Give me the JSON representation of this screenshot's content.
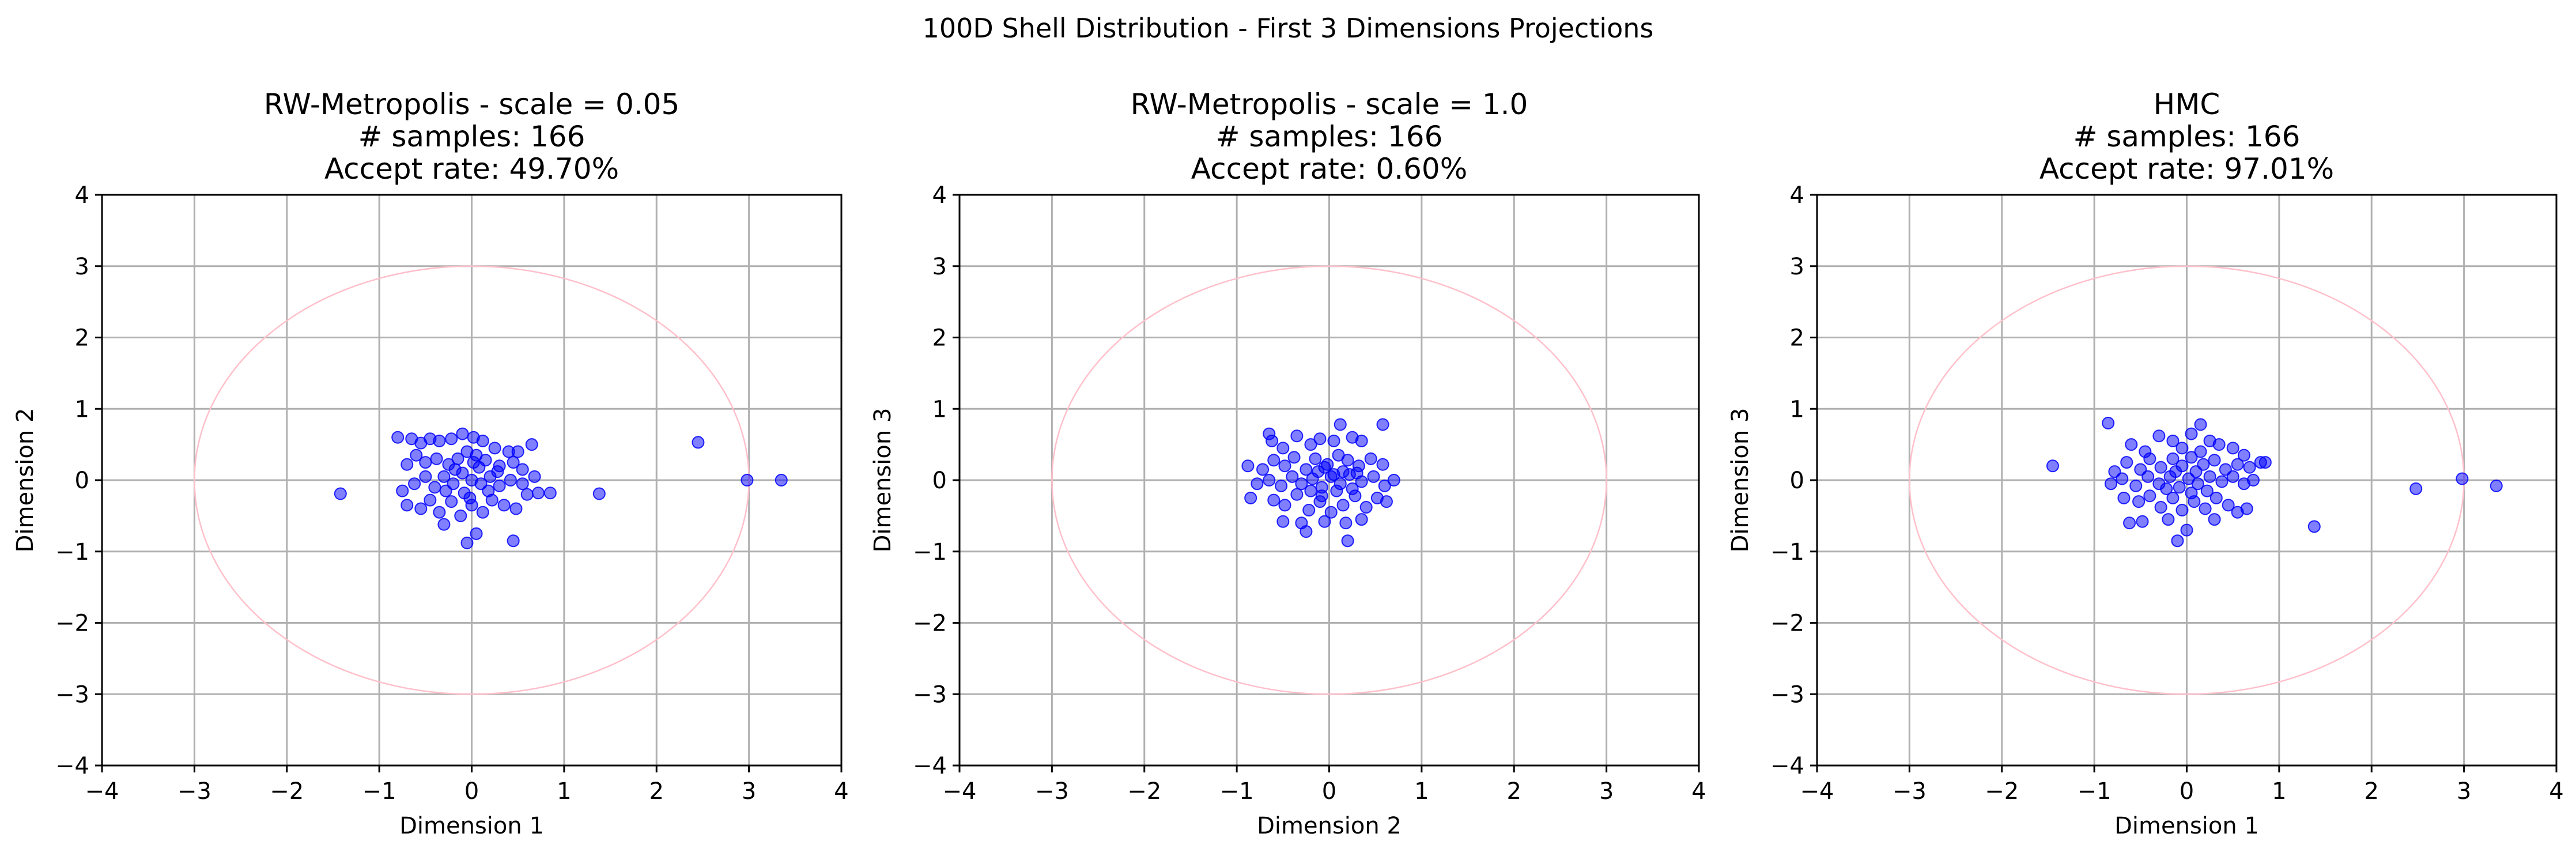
{
  "figure": {
    "suptitle": "100D Shell Distribution - First 3 Dimensions Projections"
  },
  "style": {
    "point_color": "#0000ff",
    "circle_color": "#ffc0cb",
    "grid_color": "#b0b0b0"
  },
  "chart_data": [
    {
      "type": "scatter",
      "title_lines": [
        "RW-Metropolis - scale = 0.05",
        "# samples: 166",
        "Accept rate: 49.70%"
      ],
      "xlabel": "Dimension 1",
      "ylabel": "Dimension 2",
      "xlim": [
        -4,
        4
      ],
      "ylim": [
        -4,
        4
      ],
      "xticks": [
        -4,
        -3,
        -2,
        -1,
        0,
        1,
        2,
        3,
        4
      ],
      "yticks": [
        -4,
        -3,
        -2,
        -1,
        0,
        1,
        2,
        3,
        4
      ],
      "grid": true,
      "reference_circle_radius": 3,
      "points": [
        [
          -1.42,
          -0.19
        ],
        [
          -0.8,
          0.6
        ],
        [
          -0.65,
          0.58
        ],
        [
          -0.55,
          0.52
        ],
        [
          -0.45,
          0.58
        ],
        [
          -0.35,
          0.55
        ],
        [
          -0.22,
          0.58
        ],
        [
          -0.1,
          0.65
        ],
        [
          0.02,
          0.6
        ],
        [
          0.12,
          0.55
        ],
        [
          0.25,
          0.45
        ],
        [
          0.4,
          0.4
        ],
        [
          0.5,
          0.4
        ],
        [
          0.65,
          0.5
        ],
        [
          -0.7,
          0.22
        ],
        [
          -0.6,
          0.35
        ],
        [
          -0.5,
          0.25
        ],
        [
          -0.38,
          0.3
        ],
        [
          -0.25,
          0.22
        ],
        [
          -0.15,
          0.3
        ],
        [
          -0.05,
          0.4
        ],
        [
          0.05,
          0.35
        ],
        [
          0.15,
          0.28
        ],
        [
          0.3,
          0.2
        ],
        [
          0.45,
          0.25
        ],
        [
          0.55,
          0.15
        ],
        [
          -0.75,
          -0.15
        ],
        [
          -0.62,
          -0.05
        ],
        [
          -0.5,
          0.05
        ],
        [
          -0.4,
          -0.1
        ],
        [
          -0.3,
          0.05
        ],
        [
          -0.2,
          -0.05
        ],
        [
          -0.1,
          0.1
        ],
        [
          0.0,
          0.0
        ],
        [
          0.1,
          -0.05
        ],
        [
          0.2,
          0.05
        ],
        [
          0.3,
          -0.08
        ],
        [
          0.42,
          0.0
        ],
        [
          0.55,
          -0.05
        ],
        [
          0.68,
          0.05
        ],
        [
          -0.7,
          -0.35
        ],
        [
          -0.55,
          -0.4
        ],
        [
          -0.45,
          -0.28
        ],
        [
          -0.35,
          -0.45
        ],
        [
          -0.22,
          -0.3
        ],
        [
          -0.12,
          -0.5
        ],
        [
          0.0,
          -0.35
        ],
        [
          0.12,
          -0.45
        ],
        [
          0.22,
          -0.28
        ],
        [
          0.35,
          -0.35
        ],
        [
          0.48,
          -0.4
        ],
        [
          0.6,
          -0.2
        ],
        [
          0.72,
          -0.18
        ],
        [
          0.85,
          -0.18
        ],
        [
          -0.3,
          -0.62
        ],
        [
          0.05,
          -0.75
        ],
        [
          -0.05,
          -0.88
        ],
        [
          0.45,
          -0.85
        ],
        [
          -0.18,
          0.15
        ],
        [
          -0.08,
          -0.18
        ],
        [
          0.08,
          0.18
        ],
        [
          0.18,
          -0.15
        ],
        [
          0.02,
          0.25
        ],
        [
          -0.02,
          -0.25
        ],
        [
          0.28,
          0.12
        ],
        [
          -0.28,
          -0.15
        ],
        [
          1.38,
          -0.19
        ],
        [
          2.45,
          0.53
        ],
        [
          2.98,
          0.0
        ],
        [
          3.35,
          0.0
        ]
      ]
    },
    {
      "type": "scatter",
      "title_lines": [
        "RW-Metropolis - scale = 1.0",
        "# samples: 166",
        "Accept rate: 0.60%"
      ],
      "xlabel": "Dimension 2",
      "ylabel": "Dimension 3",
      "xlim": [
        -4,
        4
      ],
      "ylim": [
        -4,
        4
      ],
      "xticks": [
        -4,
        -3,
        -2,
        -1,
        0,
        1,
        2,
        3,
        4
      ],
      "yticks": [
        -4,
        -3,
        -2,
        -1,
        0,
        1,
        2,
        3,
        4
      ],
      "grid": true,
      "reference_circle_radius": 3,
      "points": [
        [
          -0.88,
          0.2
        ],
        [
          -0.85,
          -0.25
        ],
        [
          -0.65,
          0.65
        ],
        [
          -0.62,
          0.55
        ],
        [
          -0.5,
          0.45
        ],
        [
          -0.35,
          0.62
        ],
        [
          -0.2,
          0.5
        ],
        [
          -0.1,
          0.58
        ],
        [
          0.05,
          0.55
        ],
        [
          0.12,
          0.78
        ],
        [
          0.25,
          0.6
        ],
        [
          0.35,
          0.55
        ],
        [
          0.58,
          0.78
        ],
        [
          -0.72,
          0.15
        ],
        [
          -0.6,
          0.28
        ],
        [
          -0.48,
          0.2
        ],
        [
          -0.38,
          0.32
        ],
        [
          -0.25,
          0.15
        ],
        [
          -0.15,
          0.3
        ],
        [
          -0.02,
          0.22
        ],
        [
          0.1,
          0.35
        ],
        [
          0.2,
          0.28
        ],
        [
          0.32,
          0.2
        ],
        [
          0.45,
          0.3
        ],
        [
          0.58,
          0.22
        ],
        [
          -0.78,
          -0.05
        ],
        [
          -0.65,
          0.0
        ],
        [
          -0.52,
          -0.08
        ],
        [
          -0.4,
          0.05
        ],
        [
          -0.3,
          -0.05
        ],
        [
          -0.18,
          0.02
        ],
        [
          -0.08,
          -0.1
        ],
        [
          0.02,
          0.05
        ],
        [
          0.12,
          -0.05
        ],
        [
          0.22,
          0.08
        ],
        [
          0.35,
          -0.02
        ],
        [
          0.48,
          0.05
        ],
        [
          0.6,
          -0.08
        ],
        [
          0.7,
          0.0
        ],
        [
          -0.6,
          -0.28
        ],
        [
          -0.48,
          -0.35
        ],
        [
          -0.35,
          -0.2
        ],
        [
          -0.22,
          -0.42
        ],
        [
          -0.1,
          -0.3
        ],
        [
          0.02,
          -0.45
        ],
        [
          0.15,
          -0.35
        ],
        [
          0.28,
          -0.22
        ],
        [
          0.4,
          -0.38
        ],
        [
          0.52,
          -0.25
        ],
        [
          0.62,
          -0.3
        ],
        [
          -0.5,
          -0.58
        ],
        [
          -0.3,
          -0.6
        ],
        [
          -0.25,
          -0.72
        ],
        [
          -0.05,
          -0.58
        ],
        [
          0.18,
          -0.6
        ],
        [
          0.35,
          -0.55
        ],
        [
          0.2,
          -0.85
        ],
        [
          -0.12,
          0.12
        ],
        [
          0.08,
          -0.15
        ],
        [
          -0.05,
          0.18
        ],
        [
          0.15,
          0.12
        ],
        [
          -0.2,
          -0.15
        ],
        [
          0.25,
          -0.12
        ],
        [
          0.05,
          0.08
        ],
        [
          -0.08,
          -0.22
        ],
        [
          0.3,
          0.1
        ]
      ]
    },
    {
      "type": "scatter",
      "title_lines": [
        "HMC",
        "# samples: 166",
        "Accept rate: 97.01%"
      ],
      "xlabel": "Dimension 1",
      "ylabel": "Dimension 3",
      "xlim": [
        -4,
        4
      ],
      "ylim": [
        -4,
        4
      ],
      "xticks": [
        -4,
        -3,
        -2,
        -1,
        0,
        1,
        2,
        3,
        4
      ],
      "yticks": [
        -4,
        -3,
        -2,
        -1,
        0,
        1,
        2,
        3,
        4
      ],
      "grid": true,
      "reference_circle_radius": 3,
      "points": [
        [
          -1.45,
          0.2
        ],
        [
          -0.85,
          0.8
        ],
        [
          -0.6,
          0.5
        ],
        [
          -0.45,
          0.4
        ],
        [
          -0.3,
          0.62
        ],
        [
          -0.15,
          0.55
        ],
        [
          -0.05,
          0.45
        ],
        [
          0.05,
          0.65
        ],
        [
          0.15,
          0.78
        ],
        [
          0.25,
          0.55
        ],
        [
          0.35,
          0.5
        ],
        [
          0.5,
          0.45
        ],
        [
          0.62,
          0.35
        ],
        [
          0.8,
          0.25
        ],
        [
          -0.78,
          0.12
        ],
        [
          -0.65,
          0.25
        ],
        [
          -0.5,
          0.15
        ],
        [
          -0.4,
          0.3
        ],
        [
          -0.28,
          0.18
        ],
        [
          -0.15,
          0.3
        ],
        [
          -0.05,
          0.2
        ],
        [
          0.05,
          0.32
        ],
        [
          0.18,
          0.22
        ],
        [
          0.3,
          0.28
        ],
        [
          0.42,
          0.15
        ],
        [
          0.55,
          0.22
        ],
        [
          0.68,
          0.18
        ],
        [
          0.85,
          0.25
        ],
        [
          -0.82,
          -0.05
        ],
        [
          -0.7,
          0.02
        ],
        [
          -0.55,
          -0.08
        ],
        [
          -0.42,
          0.05
        ],
        [
          -0.3,
          -0.05
        ],
        [
          -0.18,
          0.05
        ],
        [
          -0.08,
          -0.1
        ],
        [
          0.02,
          0.02
        ],
        [
          0.12,
          -0.05
        ],
        [
          0.25,
          0.05
        ],
        [
          0.38,
          -0.02
        ],
        [
          0.5,
          0.05
        ],
        [
          0.62,
          -0.05
        ],
        [
          0.72,
          0.0
        ],
        [
          -0.68,
          -0.25
        ],
        [
          -0.52,
          -0.3
        ],
        [
          -0.4,
          -0.22
        ],
        [
          -0.28,
          -0.38
        ],
        [
          -0.15,
          -0.25
        ],
        [
          -0.05,
          -0.42
        ],
        [
          0.08,
          -0.3
        ],
        [
          0.2,
          -0.4
        ],
        [
          0.32,
          -0.25
        ],
        [
          0.45,
          -0.35
        ],
        [
          0.55,
          -0.45
        ],
        [
          0.65,
          -0.4
        ],
        [
          -0.62,
          -0.6
        ],
        [
          -0.48,
          -0.58
        ],
        [
          -0.2,
          -0.55
        ],
        [
          0.0,
          -0.7
        ],
        [
          0.3,
          -0.55
        ],
        [
          -0.1,
          -0.85
        ],
        [
          0.1,
          0.12
        ],
        [
          -0.12,
          0.12
        ],
        [
          0.05,
          -0.18
        ],
        [
          -0.22,
          -0.12
        ],
        [
          0.22,
          -0.15
        ],
        [
          0.15,
          0.4
        ],
        [
          1.38,
          -0.65
        ],
        [
          2.48,
          -0.12
        ],
        [
          2.98,
          0.02
        ],
        [
          3.35,
          -0.08
        ]
      ]
    }
  ]
}
